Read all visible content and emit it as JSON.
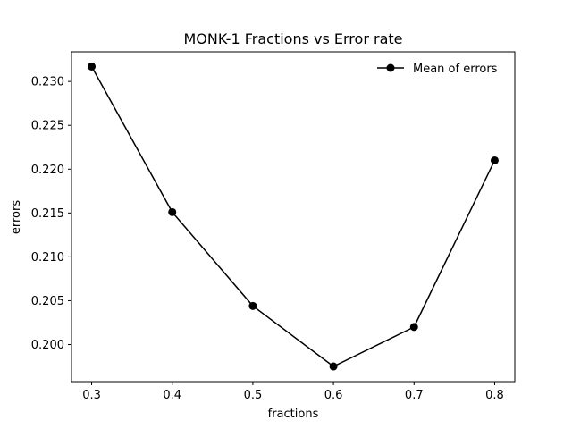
{
  "chart_data": {
    "type": "line",
    "title": "MONK-1 Fractions vs Error rate",
    "xlabel": "fractions",
    "ylabel": "errors",
    "x": [
      0.3,
      0.4,
      0.5,
      0.6,
      0.7,
      0.8
    ],
    "series": [
      {
        "name": "Mean of errors",
        "values": [
          0.2317,
          0.2151,
          0.2044,
          0.1975,
          0.202,
          0.221
        ],
        "color": "#000000",
        "marker": "circle"
      }
    ],
    "xticks": [
      "0.3",
      "0.4",
      "0.5",
      "0.6",
      "0.7",
      "0.8"
    ],
    "yticks": [
      "0.200",
      "0.205",
      "0.210",
      "0.215",
      "0.220",
      "0.225",
      "0.230"
    ],
    "xlim": [
      0.275,
      0.825
    ],
    "ylim": [
      0.19577,
      0.23338
    ],
    "grid": false,
    "legend_position": "top-right"
  }
}
